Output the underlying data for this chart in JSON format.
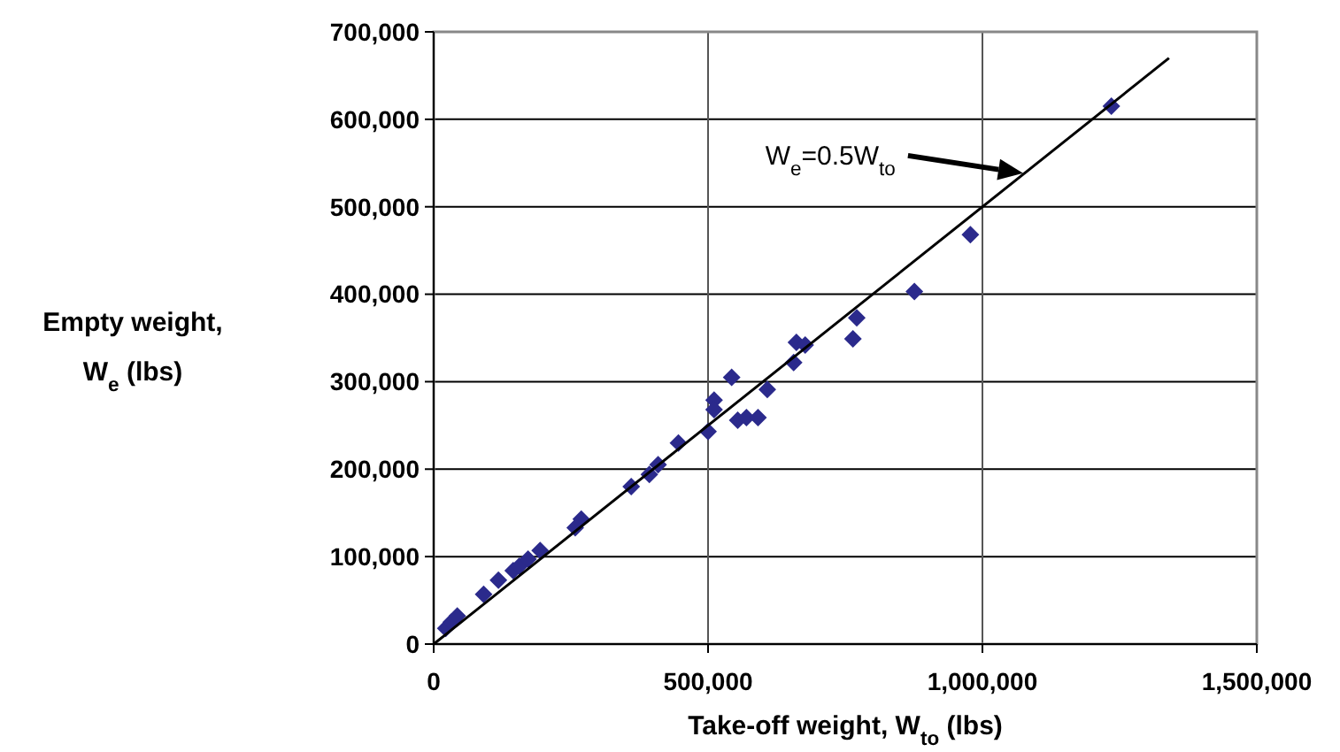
{
  "chart_data": {
    "type": "scatter",
    "xlabel": "Take-off weight, W$_{to}$ (lbs)",
    "ylabel": "Empty weight, W$_{e}$ (lbs)",
    "annotations": [
      "W$_{e}$=0.5W$_{to}$"
    ],
    "xlim": [
      0,
      1500000
    ],
    "ylim": [
      0,
      700000
    ],
    "xticks": [
      0,
      {
        "value": 500000,
        "label": "500,000"
      },
      {
        "value": 1000000,
        "label": "1,000,000"
      },
      {
        "value": 1500000,
        "label": "1,500,000"
      }
    ],
    "yticks": [
      0,
      {
        "value": 100000,
        "label": "100,000"
      },
      {
        "value": 200000,
        "label": "200,000"
      },
      {
        "value": 300000,
        "label": "300,000"
      },
      {
        "value": 400000,
        "label": "400,000"
      },
      {
        "value": 500000,
        "label": "500,000"
      },
      {
        "value": 600000,
        "label": "600,000"
      },
      {
        "value": 700000,
        "label": "700,000"
      }
    ],
    "grid": true,
    "marker": "diamond",
    "series": [
      {
        "color": "#2b2a8c",
        "x": [
          22000,
          32000,
          43000,
          91000,
          118000,
          145000,
          156000,
          172000,
          194000,
          258000,
          269000,
          360000,
          393000,
          409000,
          446000,
          500000,
          511000,
          511000,
          543000,
          554000,
          570000,
          591000,
          608000,
          656000,
          661000,
          677000,
          764000,
          771000,
          876000,
          978000,
          1235000
        ],
        "values": [
          18000,
          25000,
          32000,
          57000,
          73000,
          84000,
          89000,
          97000,
          107000,
          133000,
          143000,
          180000,
          194000,
          205000,
          230000,
          243000,
          279000,
          268000,
          305000,
          256000,
          259000,
          259000,
          291000,
          322000,
          345000,
          342000,
          349000,
          373000,
          403000,
          468000,
          615000
        ]
      },
      {
        "type": "line",
        "color": "#000000",
        "marker": "none",
        "line_style": "solid",
        "x": [
          0,
          1340000
        ],
        "values": [
          0,
          670000
        ]
      }
    ]
  }
}
